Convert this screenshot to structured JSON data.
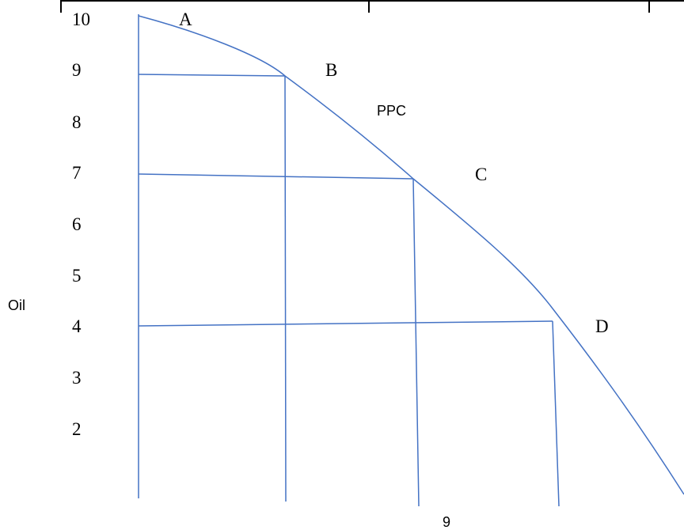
{
  "chart_data": {
    "type": "line",
    "title": "",
    "ylabel": "Oil",
    "xlabel": "",
    "x_tick_labels": [
      "9"
    ],
    "y_tick_labels": [
      "10",
      "9",
      "8",
      "7",
      "6",
      "5",
      "4",
      "3",
      "2"
    ],
    "curve_label": "PPC",
    "points": [
      {
        "label": "A",
        "y": 10
      },
      {
        "label": "B",
        "y": 9
      },
      {
        "label": "C",
        "y": 7
      },
      {
        "label": "D",
        "y": 4
      }
    ],
    "ylim": [
      1,
      10
    ],
    "grid": false,
    "line_color": "#4472C4",
    "text_color": "#000000"
  }
}
